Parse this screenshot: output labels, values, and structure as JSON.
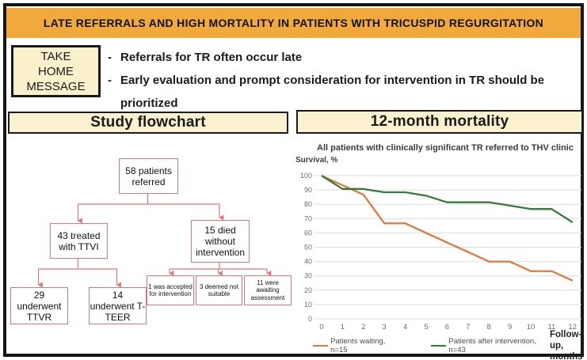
{
  "banner": {
    "title": "LATE REFERRALS  AND HIGH MORTALITY IN PATIENTS WITH TRICUSPID REGURGITATION"
  },
  "take_home": {
    "label": "TAKE\nHOME\nMESSAGE",
    "bullets": [
      "Referrals for TR often occur late",
      "Early evaluation and prompt consideration for intervention in TR should be prioritized"
    ],
    "dash": "-"
  },
  "sections": {
    "flowchart_title": "Study flowchart",
    "mortality_title": "12-month mortality"
  },
  "flowchart": {
    "root": "58 patients referred",
    "treated": "43 treated with TTVI",
    "died": "15 died without intervention",
    "ttvr": "29 underwent TTVR",
    "tteer": "14 underwent T-TEER",
    "accepted": "1 was accepted for intervention",
    "not_suitable": "3 deemed not suitable",
    "awaiting": "11 were awaiting assessment",
    "connector_color": "#E0767C"
  },
  "colors": {
    "banner_bg": "#F0A93A",
    "panel_bg": "#FBF1CE",
    "flow_border": "#E0767C",
    "grid": "#DCDCDC",
    "axis_text": "#6E6E6E"
  },
  "chart_data": {
    "type": "line",
    "title": "All patients with clinically significant TR referred to THV clinic",
    "ylabel": "Survival, %",
    "xlabel": "Follow-up, months",
    "x": [
      0,
      1,
      2,
      3,
      4,
      5,
      6,
      7,
      8,
      9,
      10,
      11,
      12
    ],
    "ylim": [
      0,
      100
    ],
    "ytick_step": 10,
    "grid": true,
    "legend_position": "bottom",
    "series": [
      {
        "name": "Patients waiting, n=15",
        "color": "#E2793C",
        "values": [
          100,
          93.3,
          86.7,
          66.7,
          66.7,
          60,
          53.3,
          46.7,
          40,
          40,
          33.3,
          33.3,
          26.7
        ]
      },
      {
        "name": "Patients after intervention, n=43",
        "color": "#36793B",
        "values": [
          100,
          90.7,
          90.7,
          88.4,
          88.4,
          86,
          81.4,
          81.4,
          81.4,
          79.1,
          76.7,
          76.7,
          67.4
        ]
      }
    ]
  }
}
